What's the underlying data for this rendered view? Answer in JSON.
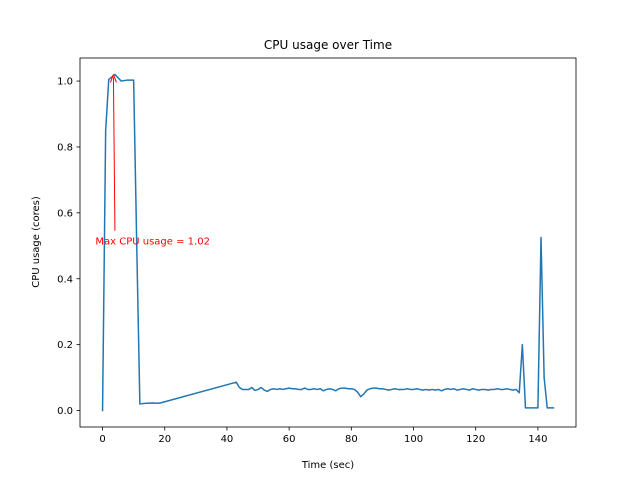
{
  "chart_data": {
    "type": "line",
    "title": "CPU usage over Time",
    "xlabel": "Time (sec)",
    "ylabel": "CPU usage (cores)",
    "xlim": [
      -7.25,
      152.25
    ],
    "ylim": [
      -0.05,
      1.07
    ],
    "xticks": [
      0,
      20,
      40,
      60,
      80,
      100,
      120,
      140
    ],
    "yticks": [
      0.0,
      0.2,
      0.4,
      0.6,
      0.8,
      1.0
    ],
    "xtick_labels": [
      "0",
      "20",
      "40",
      "60",
      "80",
      "100",
      "120",
      "140"
    ],
    "ytick_labels": [
      "0.0",
      "0.2",
      "0.4",
      "0.6",
      "0.8",
      "1.0"
    ],
    "grid": false,
    "series": [
      {
        "color": "#1f77b4",
        "x": [
          0,
          1,
          2,
          4,
          6,
          8,
          10,
          11,
          12,
          14,
          16,
          18,
          19,
          43,
          44,
          45,
          46,
          47,
          48,
          49,
          50,
          51,
          52,
          53,
          54,
          55,
          56,
          57,
          58,
          59,
          60,
          61,
          62,
          63,
          64,
          65,
          66,
          67,
          68,
          69,
          70,
          71,
          72,
          73,
          74,
          75,
          76,
          77,
          78,
          79,
          80,
          81,
          82,
          83,
          84,
          85,
          86,
          87,
          88,
          89,
          90,
          91,
          92,
          93,
          94,
          95,
          96,
          97,
          98,
          99,
          100,
          101,
          102,
          103,
          104,
          105,
          106,
          107,
          108,
          109,
          110,
          111,
          112,
          113,
          114,
          115,
          116,
          117,
          118,
          119,
          120,
          121,
          122,
          123,
          124,
          125,
          126,
          127,
          128,
          129,
          130,
          131,
          132,
          133,
          134,
          135,
          136,
          137,
          138,
          139,
          140,
          141,
          142,
          143,
          144,
          145
        ],
        "y": [
          0.0,
          0.85,
          1.005,
          1.02,
          1.0,
          1.003,
          1.003,
          0.5,
          0.02,
          0.022,
          0.023,
          0.022,
          0.024,
          0.086,
          0.07,
          0.064,
          0.064,
          0.064,
          0.07,
          0.061,
          0.064,
          0.07,
          0.062,
          0.058,
          0.064,
          0.066,
          0.064,
          0.066,
          0.064,
          0.066,
          0.068,
          0.066,
          0.066,
          0.064,
          0.064,
          0.068,
          0.064,
          0.064,
          0.066,
          0.064,
          0.066,
          0.06,
          0.064,
          0.066,
          0.064,
          0.06,
          0.066,
          0.068,
          0.068,
          0.066,
          0.066,
          0.064,
          0.056,
          0.042,
          0.05,
          0.062,
          0.066,
          0.068,
          0.068,
          0.066,
          0.066,
          0.064,
          0.062,
          0.064,
          0.066,
          0.064,
          0.064,
          0.064,
          0.066,
          0.064,
          0.064,
          0.066,
          0.064,
          0.062,
          0.064,
          0.062,
          0.064,
          0.062,
          0.064,
          0.06,
          0.064,
          0.066,
          0.064,
          0.066,
          0.062,
          0.064,
          0.066,
          0.064,
          0.062,
          0.066,
          0.064,
          0.062,
          0.064,
          0.064,
          0.062,
          0.064,
          0.064,
          0.066,
          0.064,
          0.064,
          0.066,
          0.064,
          0.062,
          0.064,
          0.054,
          0.2,
          0.008,
          0.008,
          0.008,
          0.008,
          0.008,
          0.525,
          0.1,
          0.008,
          0.008,
          0.008
        ]
      }
    ],
    "annotation": {
      "text": "Max CPU usage = 1.02",
      "color": "#ff0000",
      "point": [
        3.5,
        1.02
      ],
      "text_pos": [
        -2.3,
        0.515
      ]
    }
  }
}
